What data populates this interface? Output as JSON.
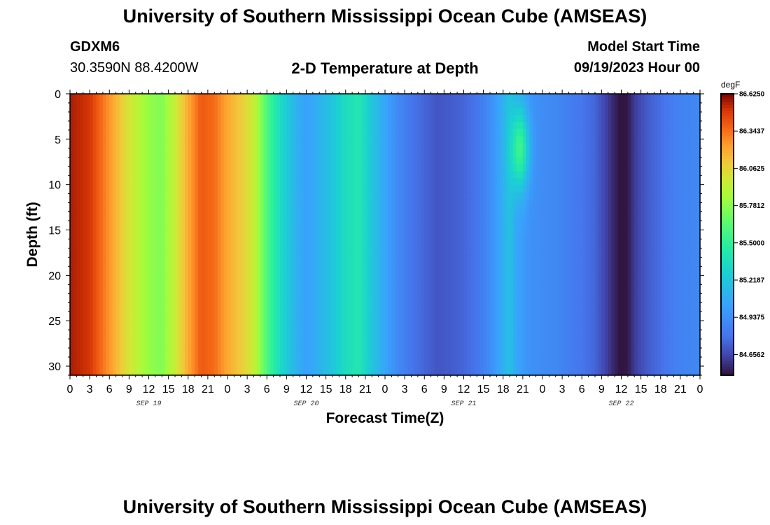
{
  "header": {
    "title": "University of Southern Mississippi Ocean Cube (AMSEAS)",
    "station_id": "GDXM6",
    "coords": "30.3590N  88.4200W",
    "plot_title": "2-D Temperature at Depth",
    "model_label": "Model Start Time",
    "model_time": "09/19/2023 Hour 00"
  },
  "footer": {
    "title": "University of Southern Mississippi Ocean Cube (AMSEAS)"
  },
  "chart_data": {
    "type": "heatmap",
    "title": "2-D Temperature at Depth",
    "xlabel": "Forecast Time(Z)",
    "ylabel": "Depth (ft)",
    "xlim": [
      0,
      96
    ],
    "ylim": [
      31,
      0
    ],
    "x_ticks": [
      0,
      3,
      6,
      9,
      12,
      15,
      18,
      21,
      24,
      27,
      30,
      33,
      36,
      39,
      42,
      45,
      48,
      51,
      54,
      57,
      60,
      63,
      66,
      69,
      72,
      75,
      78,
      81,
      84,
      87,
      90,
      93,
      96
    ],
    "x_tick_labels": [
      "0",
      "3",
      "6",
      "9",
      "12",
      "15",
      "18",
      "21",
      "0",
      "3",
      "6",
      "9",
      "12",
      "15",
      "18",
      "21",
      "0",
      "3",
      "6",
      "9",
      "12",
      "15",
      "18",
      "21",
      "0",
      "3",
      "6",
      "9",
      "12",
      "15",
      "18",
      "21",
      "0"
    ],
    "y_ticks": [
      0,
      5,
      10,
      15,
      20,
      25,
      30
    ],
    "y_tick_labels": [
      "0",
      "5",
      "10",
      "15",
      "20",
      "25",
      "30"
    ],
    "date_labels": [
      {
        "hour": 12,
        "label": "SEP 19"
      },
      {
        "hour": 36,
        "label": "SEP 20"
      },
      {
        "hour": 60,
        "label": "SEP 21"
      },
      {
        "hour": 84,
        "label": "SEP 22"
      }
    ],
    "colorbar": {
      "unit": "degF",
      "min": 84.5,
      "max": 86.625,
      "tick_values": [
        86.625,
        86.3437,
        86.0625,
        85.7812,
        85.5,
        85.2187,
        84.9375,
        84.6562
      ],
      "tick_labels": [
        "86.6250",
        "86.3437",
        "86.0625",
        "85.7812",
        "85.5000",
        "85.2187",
        "84.9375",
        "84.6562"
      ]
    },
    "surface_temperature_by_hour": [
      [
        0,
        86.56
      ],
      [
        3,
        86.5
      ],
      [
        6,
        86.25
      ],
      [
        9,
        86.0
      ],
      [
        12,
        85.8
      ],
      [
        14,
        85.75
      ],
      [
        16,
        85.95
      ],
      [
        18,
        86.2
      ],
      [
        20,
        86.4
      ],
      [
        22,
        86.35
      ],
      [
        24,
        86.2
      ],
      [
        26,
        86.1
      ],
      [
        28,
        85.95
      ],
      [
        30,
        85.6
      ],
      [
        32,
        85.35
      ],
      [
        34,
        85.15
      ],
      [
        36,
        85.02
      ],
      [
        38,
        85.12
      ],
      [
        40,
        85.22
      ],
      [
        42,
        85.35
      ],
      [
        44,
        85.42
      ],
      [
        46,
        85.22
      ],
      [
        48,
        85.05
      ],
      [
        50,
        84.9
      ],
      [
        52,
        84.8
      ],
      [
        54,
        84.75
      ],
      [
        56,
        84.7
      ],
      [
        58,
        84.72
      ],
      [
        60,
        84.75
      ],
      [
        62,
        84.8
      ],
      [
        64,
        84.92
      ],
      [
        66,
        85.1
      ],
      [
        67,
        85.2
      ],
      [
        68,
        85.05
      ],
      [
        70,
        84.95
      ],
      [
        72,
        84.92
      ],
      [
        74,
        84.9
      ],
      [
        76,
        84.85
      ],
      [
        78,
        84.8
      ],
      [
        80,
        84.75
      ],
      [
        82,
        84.62
      ],
      [
        83,
        84.55
      ],
      [
        84,
        84.5
      ],
      [
        85,
        84.52
      ],
      [
        86,
        84.62
      ],
      [
        88,
        84.72
      ],
      [
        90,
        84.78
      ],
      [
        92,
        84.85
      ],
      [
        94,
        84.88
      ],
      [
        96,
        84.9
      ]
    ],
    "subsurface_warm_feature": {
      "hour_center": 68.5,
      "depth_center_ft": 6,
      "peak_temperature": 85.55
    }
  }
}
